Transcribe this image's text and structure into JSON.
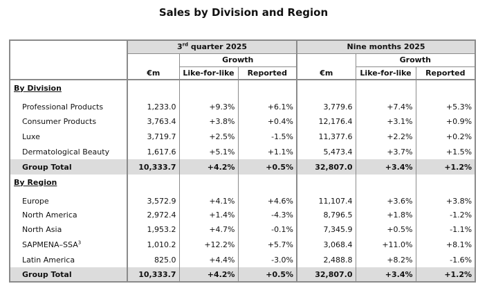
{
  "title": "Sales by Division and Region",
  "header": {
    "q3": "3rd quarter 2025",
    "q3_ord": "rd",
    "q3_base": "3",
    "q3_rest": " quarter 2025",
    "nine": "Nine months 2025",
    "growth": "Growth",
    "eur_m": "€m",
    "lfl": "Like-for-like",
    "reported": "Reported"
  },
  "division": {
    "heading": "By Division",
    "rows": [
      {
        "label": "Professional Products",
        "q3_value": "1,233.0",
        "q3_lfl": "+9.3%",
        "q3_rep": "+6.1%",
        "nm_value": "3,779.6",
        "nm_lfl": "+7.4%",
        "nm_rep": "+5.3%"
      },
      {
        "label": "Consumer Products",
        "q3_value": "3,763.4",
        "q3_lfl": "+3.8%",
        "q3_rep": "+0.4%",
        "nm_value": "12,176.4",
        "nm_lfl": "+3.1%",
        "nm_rep": "+0.9%"
      },
      {
        "label": "Luxe",
        "q3_value": "3,719.7",
        "q3_lfl": "+2.5%",
        "q3_rep": "-1.5%",
        "nm_value": "11,377.6",
        "nm_lfl": "+2.2%",
        "nm_rep": "+0.2%"
      },
      {
        "label": "Dermatological Beauty",
        "q3_value": "1,617.6",
        "q3_lfl": "+5.1%",
        "q3_rep": "+1.1%",
        "nm_value": "5,473.4",
        "nm_lfl": "+3.7%",
        "nm_rep": "+1.5%"
      }
    ],
    "total": {
      "label": "Group Total",
      "q3_value": "10,333.7",
      "q3_lfl": "+4.2%",
      "q3_rep": "+0.5%",
      "nm_value": "32,807.0",
      "nm_lfl": "+3.4%",
      "nm_rep": "+1.2%"
    }
  },
  "region": {
    "heading": "By Region",
    "rows": [
      {
        "label": "Europe",
        "q3_value": "3,572.9",
        "q3_lfl": "+4.1%",
        "q3_rep": "+4.6%",
        "nm_value": "11,107.4",
        "nm_lfl": "+3.6%",
        "nm_rep": "+3.8%"
      },
      {
        "label": "North America",
        "q3_value": "2,972.4",
        "q3_lfl": "+1.4%",
        "q3_rep": "-4.3%",
        "nm_value": "8,796.5",
        "nm_lfl": "+1.8%",
        "nm_rep": "-1.2%"
      },
      {
        "label": "North Asia",
        "q3_value": "1,953.2",
        "q3_lfl": "+4.7%",
        "q3_rep": "-0.1%",
        "nm_value": "7,345.9",
        "nm_lfl": "+0.5%",
        "nm_rep": "-1.1%"
      },
      {
        "label": "SAPMENA–SSA",
        "sup": "3",
        "q3_value": "1,010.2",
        "q3_lfl": "+12.2%",
        "q3_rep": "+5.7%",
        "nm_value": "3,068.4",
        "nm_lfl": "+11.0%",
        "nm_rep": "+8.1%"
      },
      {
        "label": "Latin America",
        "q3_value": "825.0",
        "q3_lfl": "+4.4%",
        "q3_rep": "-3.0%",
        "nm_value": "2,488.8",
        "nm_lfl": "+8.2%",
        "nm_rep": "-1.6%"
      }
    ],
    "total": {
      "label": "Group Total",
      "q3_value": "10,333.7",
      "q3_lfl": "+4.2%",
      "q3_rep": "+0.5%",
      "nm_value": "32,807.0",
      "nm_lfl": "+3.4%",
      "nm_rep": "+1.2%"
    }
  }
}
